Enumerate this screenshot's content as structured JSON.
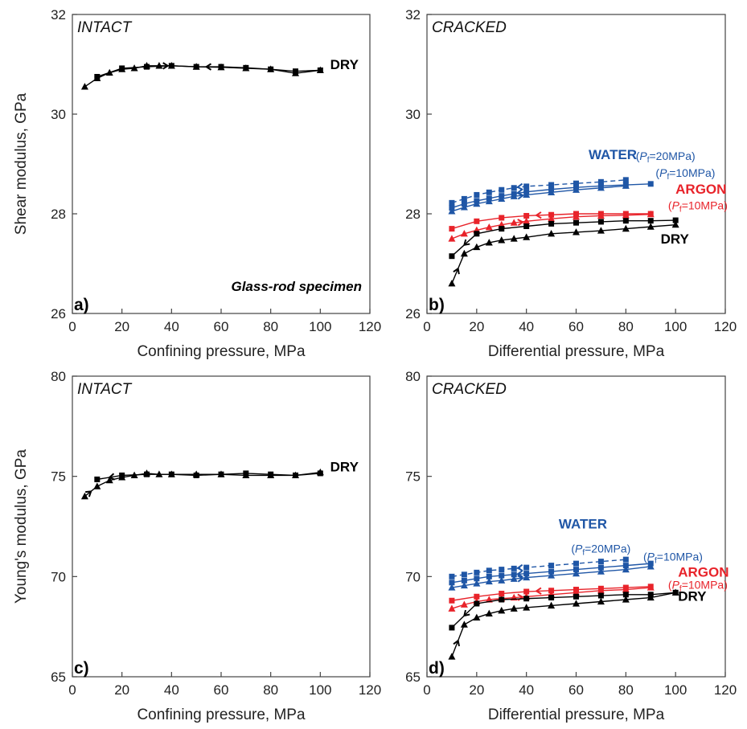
{
  "colors": {
    "dry": "#000000",
    "water": "#1f56a6",
    "argon": "#e8232a"
  },
  "chart_data": [
    {
      "type": "line",
      "panel_label": "a)",
      "title": "INTACT",
      "note": "Glass-rod specimen",
      "xlabel": "Confining pressure, MPa",
      "ylabel": "Shear modulus, GPa",
      "xlim": [
        0,
        120
      ],
      "ylim": [
        26,
        32
      ],
      "xticks": [
        "0",
        "20",
        "40",
        "60",
        "80",
        "100",
        "120"
      ],
      "yticks": [
        "26",
        "28",
        "30",
        "32"
      ],
      "annotations": [
        {
          "text": "DRY",
          "x": 104,
          "y": 30.9,
          "color": "dry",
          "style": "bold"
        }
      ],
      "series": [
        {
          "name": "",
          "color": "dry",
          "marker": "triangle",
          "dashed": false,
          "arrow": "mid-right",
          "x": [
            5,
            10,
            15,
            20,
            25,
            30,
            35,
            40,
            50,
            60,
            70,
            80,
            90,
            100
          ],
          "y": [
            30.55,
            30.72,
            30.83,
            30.9,
            30.92,
            30.97,
            30.97,
            30.97,
            30.95,
            30.94,
            30.92,
            30.9,
            30.82,
            30.88
          ]
        },
        {
          "name": "",
          "color": "dry",
          "marker": "square",
          "dashed": false,
          "arrow": "mid-left",
          "x": [
            10,
            20,
            30,
            40,
            50,
            60,
            70,
            80,
            90,
            100
          ],
          "y": [
            30.75,
            30.92,
            30.95,
            30.97,
            30.95,
            30.95,
            30.93,
            30.9,
            30.86,
            30.88
          ]
        }
      ]
    },
    {
      "type": "line",
      "panel_label": "b)",
      "title": "CRACKED",
      "xlabel": "Differential pressure, MPa",
      "ylabel": "",
      "xlim": [
        0,
        120
      ],
      "ylim": [
        26,
        32
      ],
      "xticks": [
        "0",
        "20",
        "40",
        "60",
        "80",
        "100",
        "120"
      ],
      "yticks": [
        "26",
        "28",
        "30",
        "32"
      ],
      "annotations": [
        {
          "text": "WATER",
          "x": 65,
          "y": 29.1,
          "color": "water",
          "style": "bold"
        },
        {
          "text": "(Pf=20MPa)",
          "x": 84,
          "y": 29.08,
          "color": "water",
          "style": "small"
        },
        {
          "text": "(Pf=10MPa)",
          "x": 92,
          "y": 28.74,
          "color": "water",
          "style": "small"
        },
        {
          "text": "ARGON",
          "x": 100,
          "y": 28.4,
          "color": "argon",
          "style": "bold"
        },
        {
          "text": "(Pf=10MPa)",
          "x": 97,
          "y": 28.09,
          "color": "argon",
          "style": "small"
        },
        {
          "text": "DRY",
          "x": 94,
          "y": 27.4,
          "color": "dry",
          "style": "bold"
        }
      ],
      "series": [
        {
          "name": "",
          "color": "water",
          "marker": "square",
          "dashed": true,
          "arrow": "mid-left",
          "x": [
            10,
            15,
            20,
            25,
            30,
            35,
            40,
            50,
            60,
            70,
            80
          ],
          "y": [
            28.22,
            28.3,
            28.38,
            28.43,
            28.48,
            28.52,
            28.55,
            28.58,
            28.61,
            28.64,
            28.68
          ]
        },
        {
          "name": "",
          "color": "water",
          "marker": "triangle",
          "dashed": false,
          "arrow": "mid-right",
          "x": [
            10,
            15,
            20,
            25,
            30,
            35,
            40,
            50,
            60,
            70,
            80
          ],
          "y": [
            28.05,
            28.13,
            28.2,
            28.25,
            28.3,
            28.35,
            28.38,
            28.43,
            28.48,
            28.52,
            28.56
          ]
        },
        {
          "name": "",
          "color": "water",
          "marker": "square",
          "dashed": false,
          "arrow": "mid-left",
          "x": [
            10,
            15,
            20,
            25,
            30,
            35,
            40,
            50,
            60,
            70,
            80,
            90
          ],
          "y": [
            28.12,
            28.2,
            28.26,
            28.31,
            28.36,
            28.4,
            28.44,
            28.49,
            28.53,
            28.56,
            28.58,
            28.6
          ]
        },
        {
          "name": "",
          "color": "argon",
          "marker": "triangle",
          "dashed": false,
          "arrow": "mid-right",
          "x": [
            10,
            15,
            20,
            25,
            30,
            35,
            40,
            50,
            60,
            70,
            80,
            90
          ],
          "y": [
            27.5,
            27.6,
            27.67,
            27.73,
            27.78,
            27.82,
            27.85,
            27.9,
            27.94,
            27.96,
            27.97,
            27.99
          ]
        },
        {
          "name": "",
          "color": "argon",
          "marker": "square",
          "dashed": false,
          "arrow": "mid-left",
          "x": [
            10,
            20,
            30,
            40,
            50,
            60,
            70,
            80,
            90
          ],
          "y": [
            27.7,
            27.85,
            27.92,
            27.96,
            27.98,
            28.0,
            28.0,
            28.0,
            28.0
          ]
        },
        {
          "name": "",
          "color": "dry",
          "marker": "triangle",
          "dashed": false,
          "arrow": "start-up",
          "x": [
            10,
            15,
            20,
            25,
            30,
            35,
            40,
            50,
            60,
            70,
            80,
            90,
            100
          ],
          "y": [
            26.6,
            27.2,
            27.33,
            27.42,
            27.47,
            27.5,
            27.53,
            27.6,
            27.63,
            27.66,
            27.7,
            27.74,
            27.78
          ]
        },
        {
          "name": "",
          "color": "dry",
          "marker": "square",
          "dashed": false,
          "arrow": "start-down",
          "x": [
            10,
            20,
            30,
            40,
            50,
            60,
            70,
            80,
            90,
            100
          ],
          "y": [
            27.15,
            27.6,
            27.7,
            27.75,
            27.8,
            27.82,
            27.84,
            27.86,
            27.86,
            27.87
          ]
        }
      ]
    },
    {
      "type": "line",
      "panel_label": "c)",
      "title": "INTACT",
      "xlabel": "Confining pressure, MPa",
      "ylabel": "Young's modulus, GPa",
      "xlim": [
        0,
        120
      ],
      "ylim": [
        65,
        80
      ],
      "xticks": [
        "0",
        "20",
        "40",
        "60",
        "80",
        "100",
        "120"
      ],
      "yticks": [
        "65",
        "70",
        "75",
        "80"
      ],
      "annotations": [
        {
          "text": "DRY",
          "x": 104,
          "y": 75.25,
          "color": "dry",
          "style": "bold"
        }
      ],
      "series": [
        {
          "name": "",
          "color": "dry",
          "marker": "triangle",
          "dashed": false,
          "arrow": "start-up",
          "x": [
            5,
            10,
            15,
            20,
            25,
            30,
            35,
            40,
            50,
            60,
            70,
            80,
            90,
            100
          ],
          "y": [
            74.0,
            74.5,
            74.8,
            74.95,
            75.05,
            75.15,
            75.1,
            75.1,
            75.1,
            75.1,
            75.05,
            75.05,
            75.05,
            75.2
          ]
        },
        {
          "name": "",
          "color": "dry",
          "marker": "square",
          "dashed": false,
          "arrow": "start-down",
          "x": [
            10,
            20,
            30,
            40,
            50,
            60,
            70,
            80,
            90,
            100
          ],
          "y": [
            74.85,
            75.05,
            75.1,
            75.1,
            75.05,
            75.1,
            75.15,
            75.1,
            75.05,
            75.15
          ]
        }
      ]
    },
    {
      "type": "line",
      "panel_label": "d)",
      "title": "CRACKED",
      "xlabel": "Differential pressure, MPa",
      "ylabel": "",
      "xlim": [
        0,
        120
      ],
      "ylim": [
        65,
        80
      ],
      "xticks": [
        "0",
        "20",
        "40",
        "60",
        "80",
        "100",
        "120"
      ],
      "yticks": [
        "65",
        "70",
        "75",
        "80"
      ],
      "annotations": [
        {
          "text": "WATER",
          "x": 53,
          "y": 72.4,
          "color": "water",
          "style": "bold"
        },
        {
          "text": "(Pf=20MPa)",
          "x": 58,
          "y": 71.2,
          "color": "water",
          "style": "small"
        },
        {
          "text": "(Pf=10MPa)",
          "x": 87,
          "y": 70.8,
          "color": "water",
          "style": "small"
        },
        {
          "text": "ARGON",
          "x": 101,
          "y": 70.0,
          "color": "argon",
          "style": "bold"
        },
        {
          "text": "(Pf=10MPa)",
          "x": 97,
          "y": 69.4,
          "color": "argon",
          "style": "small"
        },
        {
          "text": "DRY",
          "x": 101,
          "y": 68.8,
          "color": "dry",
          "style": "bold"
        }
      ],
      "series": [
        {
          "name": "",
          "color": "water",
          "marker": "square",
          "dashed": true,
          "arrow": "mid-left",
          "x": [
            10,
            15,
            20,
            25,
            30,
            35,
            40,
            50,
            60,
            70,
            80
          ],
          "y": [
            70.0,
            70.1,
            70.2,
            70.3,
            70.35,
            70.4,
            70.45,
            70.55,
            70.65,
            70.75,
            70.85
          ]
        },
        {
          "name": "",
          "color": "water",
          "marker": "triangle",
          "dashed": false,
          "arrow": "mid-right",
          "x": [
            10,
            15,
            20,
            25,
            30,
            35,
            40,
            50,
            60,
            70,
            80,
            90
          ],
          "y": [
            69.45,
            69.55,
            69.65,
            69.75,
            69.8,
            69.88,
            69.95,
            70.05,
            70.15,
            70.25,
            70.35,
            70.5
          ]
        },
        {
          "name": "",
          "color": "water",
          "marker": "square",
          "dashed": false,
          "arrow": "mid-left",
          "x": [
            10,
            15,
            20,
            25,
            30,
            35,
            40,
            50,
            60,
            70,
            80,
            90
          ],
          "y": [
            69.7,
            69.8,
            69.9,
            70.0,
            70.05,
            70.1,
            70.15,
            70.25,
            70.35,
            70.45,
            70.55,
            70.65
          ]
        },
        {
          "name": "",
          "color": "argon",
          "marker": "triangle",
          "dashed": false,
          "arrow": "mid-right",
          "x": [
            10,
            15,
            20,
            25,
            30,
            35,
            40,
            50,
            60,
            70,
            80,
            90
          ],
          "y": [
            68.4,
            68.6,
            68.75,
            68.85,
            68.9,
            68.95,
            69.0,
            69.1,
            69.2,
            69.3,
            69.35,
            69.45
          ]
        },
        {
          "name": "",
          "color": "argon",
          "marker": "square",
          "dashed": false,
          "arrow": "mid-left",
          "x": [
            10,
            20,
            30,
            40,
            50,
            60,
            70,
            80,
            90
          ],
          "y": [
            68.8,
            69.0,
            69.15,
            69.25,
            69.3,
            69.35,
            69.4,
            69.45,
            69.5
          ]
        },
        {
          "name": "",
          "color": "dry",
          "marker": "triangle",
          "dashed": false,
          "arrow": "start-up",
          "x": [
            10,
            15,
            20,
            25,
            30,
            35,
            40,
            50,
            60,
            70,
            80,
            90,
            100
          ],
          "y": [
            66.0,
            67.6,
            67.95,
            68.15,
            68.3,
            68.4,
            68.45,
            68.55,
            68.65,
            68.75,
            68.85,
            68.95,
            69.2
          ]
        },
        {
          "name": "",
          "color": "dry",
          "marker": "square",
          "dashed": false,
          "arrow": "start-down",
          "x": [
            10,
            20,
            30,
            40,
            50,
            60,
            70,
            80,
            90,
            100
          ],
          "y": [
            67.45,
            68.65,
            68.85,
            68.9,
            68.95,
            69.0,
            69.05,
            69.1,
            69.1,
            69.2
          ]
        }
      ]
    }
  ]
}
